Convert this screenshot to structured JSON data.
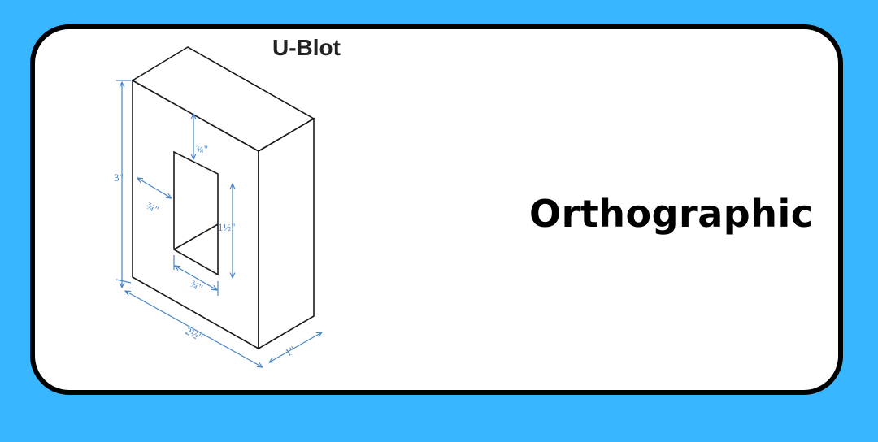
{
  "title": "Orthographic",
  "diagram": {
    "header_fragment": "U-Blot",
    "dimensions": {
      "height": "3\"",
      "top_gap": "¾\"",
      "left_gap": "¾\"",
      "opening_height": "1½\"",
      "opening_width": "¾\"",
      "width": "2½\"",
      "depth": "1\""
    }
  },
  "colors": {
    "background": "#38b6ff",
    "card": "#ffffff",
    "border": "#000000",
    "dimension": "#4a86c8"
  }
}
